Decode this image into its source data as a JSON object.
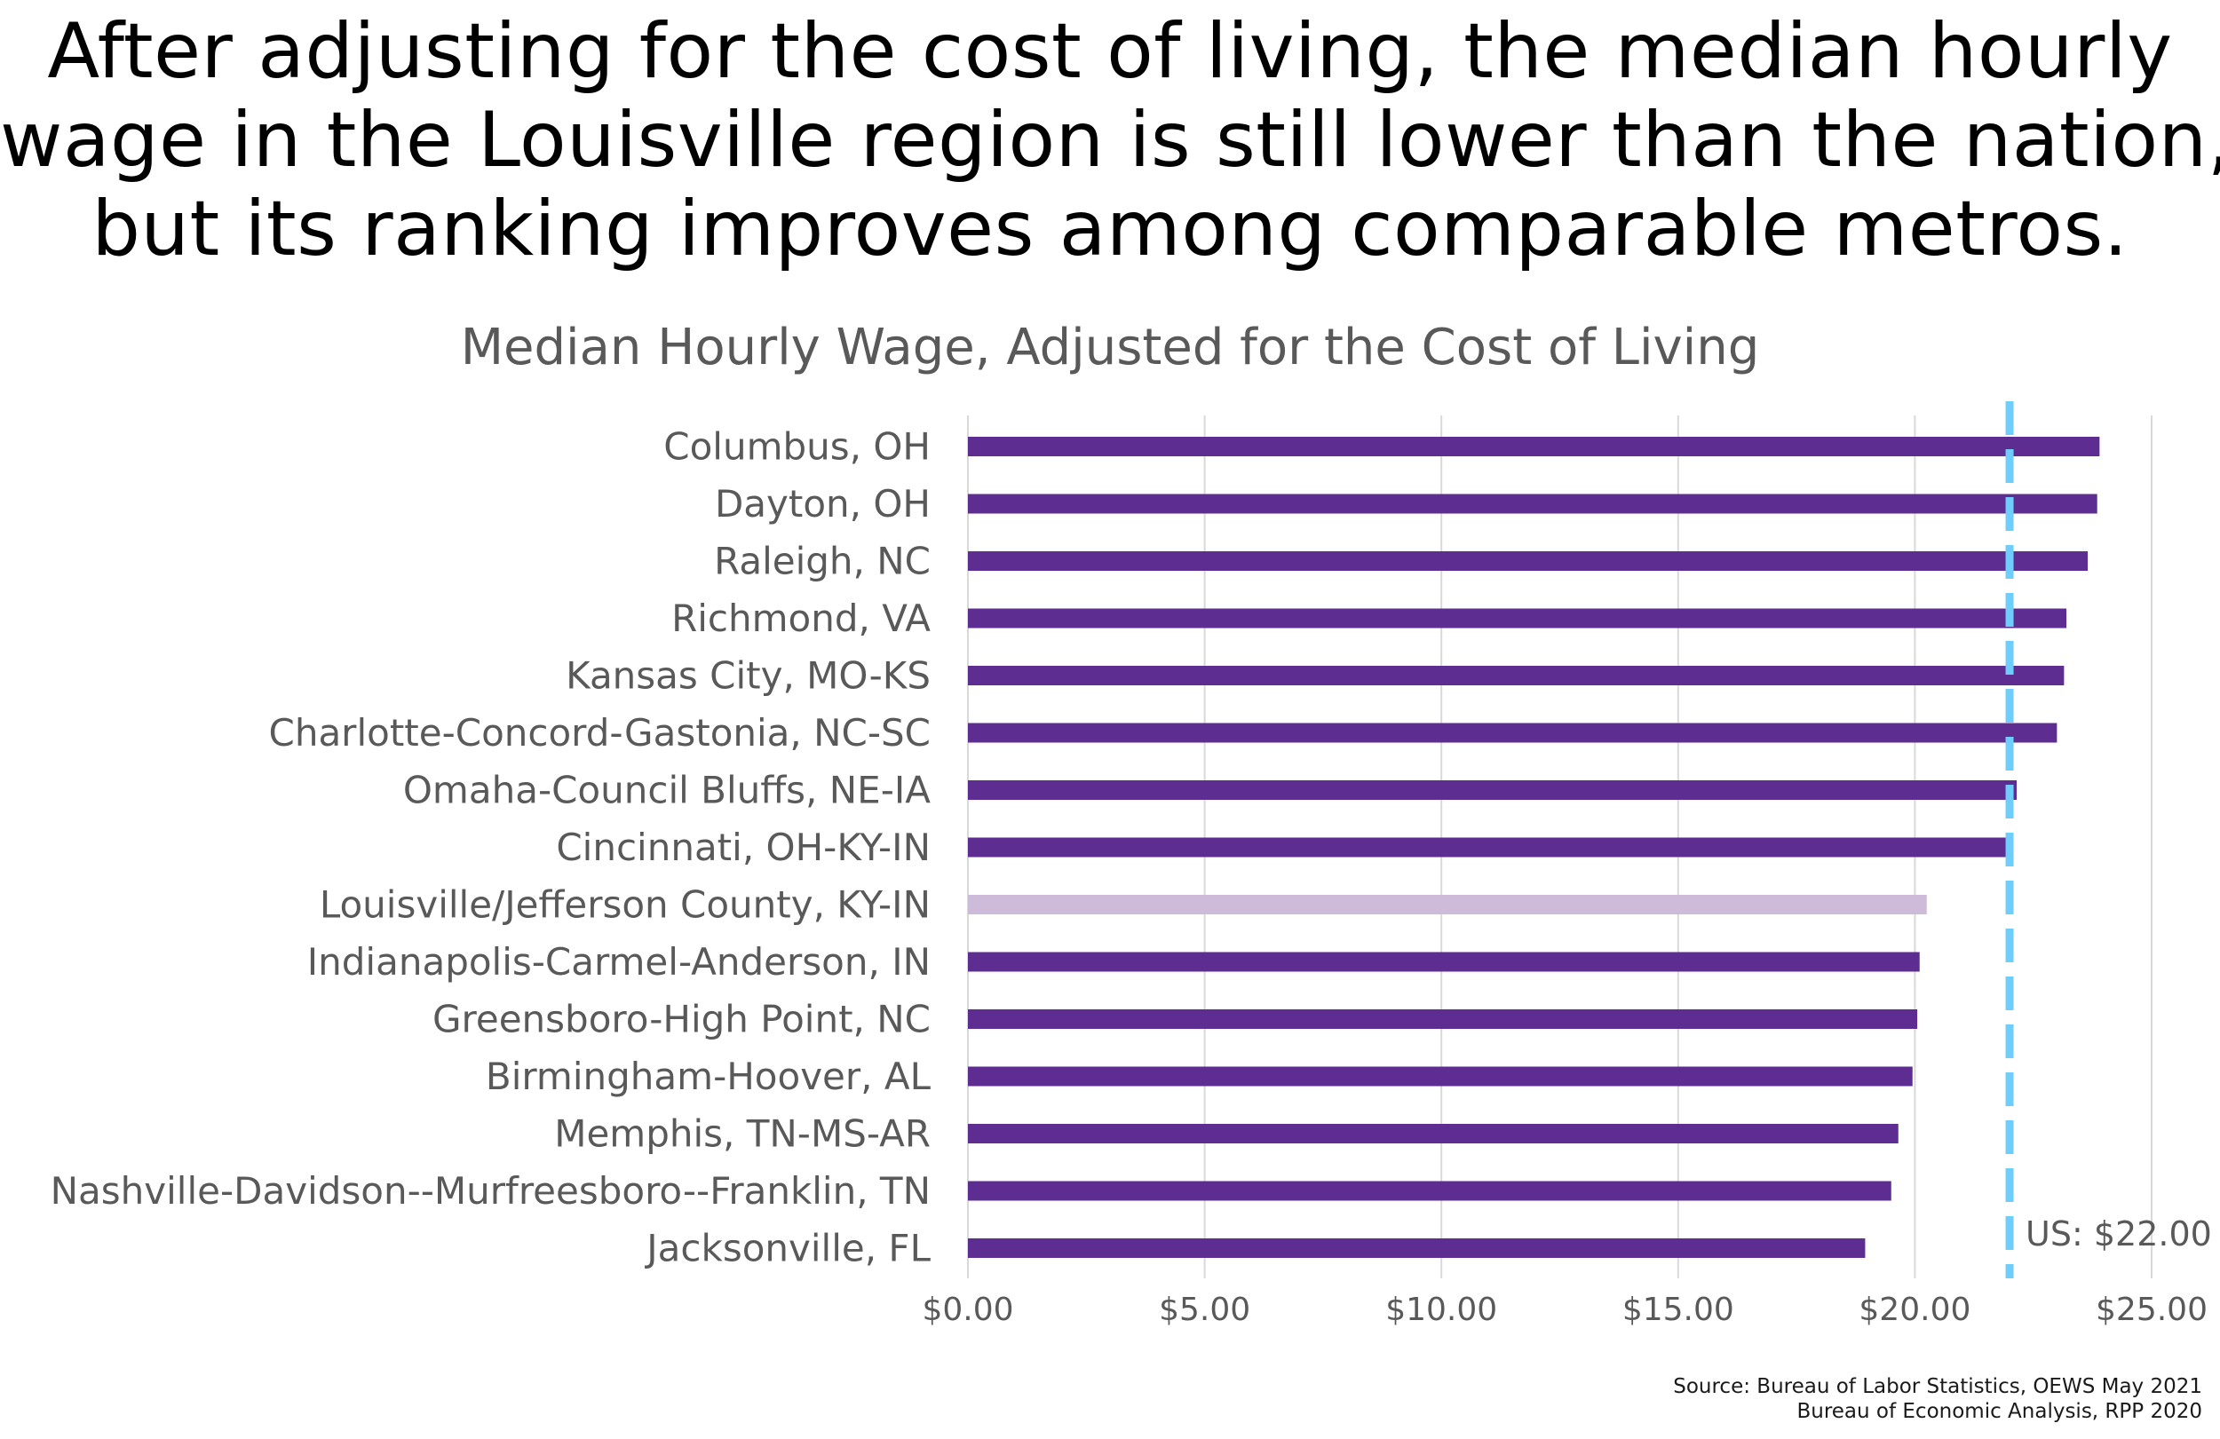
{
  "headline": {
    "line1": "After adjusting for the cost of living, the median hourly",
    "line2": "wage in the Louisville region is still lower than the nation,",
    "line3": "but its ranking improves among comparable metros."
  },
  "source": {
    "line1": "Source: Bureau of Labor Statistics, OEWS May 2021",
    "line2": "Bureau of Economic Analysis, RPP 2020"
  },
  "colors": {
    "bar": "#5e2d91",
    "highlight": "#cdbbd9",
    "reference_line": "#6fcdfb",
    "gridline": "#d9d9d9",
    "label_text": "#595959",
    "title_text": "#595959"
  },
  "chart_data": {
    "type": "bar",
    "orientation": "horizontal",
    "title": "Median Hourly Wage, Adjusted for the Cost of Living",
    "categories": [
      "Columbus, OH",
      "Dayton, OH",
      "Raleigh, NC",
      "Richmond, VA",
      "Kansas City, MO-KS",
      "Charlotte-Concord-Gastonia, NC-SC",
      "Omaha-Council Bluffs, NE-IA",
      "Cincinnati, OH-KY-IN",
      "Louisville/Jefferson County, KY-IN",
      "Indianapolis-Carmel-Anderson, IN",
      "Greensboro-High Point, NC",
      "Birmingham-Hoover, AL",
      "Memphis, TN-MS-AR",
      "Nashville-Davidson--Murfreesboro--Franklin, TN",
      "Jacksonville, FL"
    ],
    "values": [
      23.9,
      23.85,
      23.65,
      23.2,
      23.15,
      23.0,
      22.15,
      21.95,
      20.25,
      20.1,
      20.05,
      19.95,
      19.65,
      19.5,
      18.95
    ],
    "highlight_category": "Louisville/Jefferson County, KY-IN",
    "xlim": [
      0,
      25
    ],
    "xticks": [
      0,
      5,
      10,
      15,
      20,
      25
    ],
    "xtick_labels": [
      "$0.00",
      "$5.00",
      "$10.00",
      "$15.00",
      "$20.00",
      "$25.00"
    ],
    "reference_line": {
      "value": 22.0,
      "label": "US: $22.00",
      "style": "dashed"
    },
    "grid": true,
    "legend": "none"
  }
}
